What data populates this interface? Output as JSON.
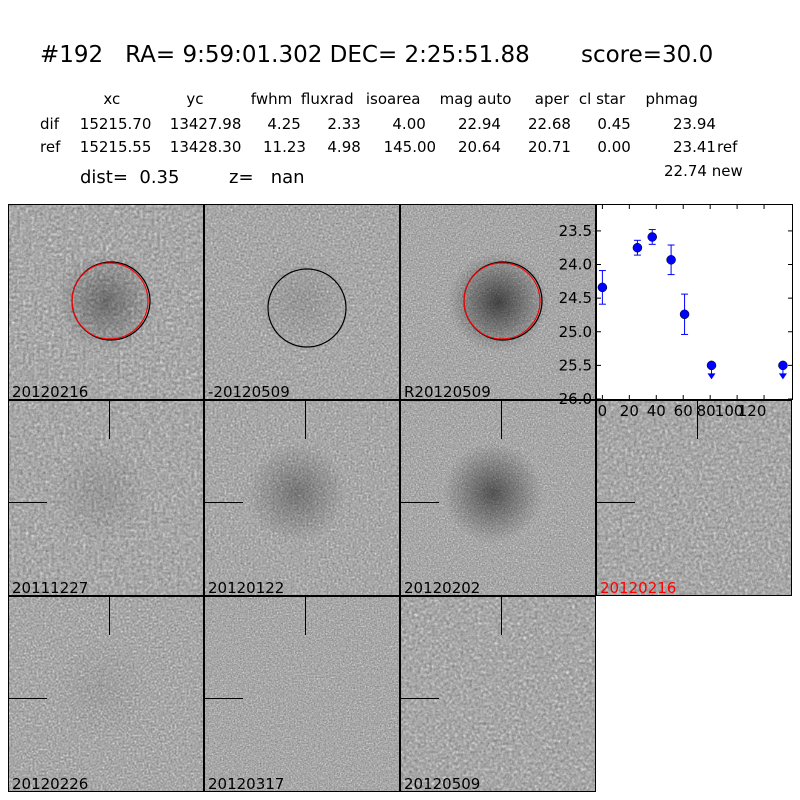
{
  "header": {
    "title": "#192   RA= 9:59:01.302 DEC= 2:25:51.88       score=30.0",
    "columns": [
      "xc",
      "yc",
      "fwhm",
      "fluxrad",
      "isoarea",
      "mag auto",
      "aper",
      "cl star",
      "phmag"
    ],
    "rows": [
      {
        "label": "dif",
        "values": [
          "15215.70",
          "13427.98",
          "4.25",
          "2.33",
          "4.00",
          "22.94",
          "22.68",
          "0.45",
          "23.94"
        ],
        "suffix": ""
      },
      {
        "label": "ref",
        "values": [
          "15215.55",
          "13428.30",
          "11.23",
          "4.98",
          "145.00",
          "20.64",
          "20.71",
          "0.00",
          "23.41"
        ],
        "suffix": "ref"
      }
    ],
    "new_mag": "22.74 new",
    "dist": "dist=  0.35",
    "z": "z=   nan"
  },
  "panels": [
    {
      "label": "20120216",
      "circle": "red",
      "dark": 0.35
    },
    {
      "label": "-20120509",
      "circle": "black",
      "dark": 0.1
    },
    {
      "label": "R20120509",
      "circle": "red",
      "dark": 0.6
    },
    {
      "label": "20111227",
      "dark": 0.1
    },
    {
      "label": "20120122",
      "dark": 0.3
    },
    {
      "label": "20120202",
      "dark": 0.5
    },
    {
      "label": "20120216",
      "label_color": "#ff0000",
      "dark": 0.0
    },
    {
      "label": "20120226",
      "dark": 0.05
    },
    {
      "label": "20120317",
      "dark": 0.0
    },
    {
      "label": "20120509",
      "dark": 0.0
    }
  ],
  "chart_data": {
    "type": "scatter",
    "x": [
      0,
      26,
      37,
      51,
      61,
      81,
      134
    ],
    "y": [
      24.34,
      23.75,
      23.59,
      23.93,
      24.74,
      25.5,
      25.5
    ],
    "yerr": [
      0.25,
      0.11,
      0.11,
      0.22,
      0.3,
      null,
      null
    ],
    "upper_limit": [
      false,
      false,
      false,
      false,
      false,
      true,
      true
    ],
    "xlim": [
      -4,
      140
    ],
    "ylim": [
      26.0,
      23.1
    ],
    "y_inverted": true,
    "xticks": [
      "0",
      "20",
      "40",
      "60",
      "80",
      "100",
      "120"
    ],
    "yticks": [
      "23.5",
      "24.0",
      "24.5",
      "25.0",
      "25.5",
      "26.0"
    ],
    "color": "#0000ff",
    "grid": false
  }
}
